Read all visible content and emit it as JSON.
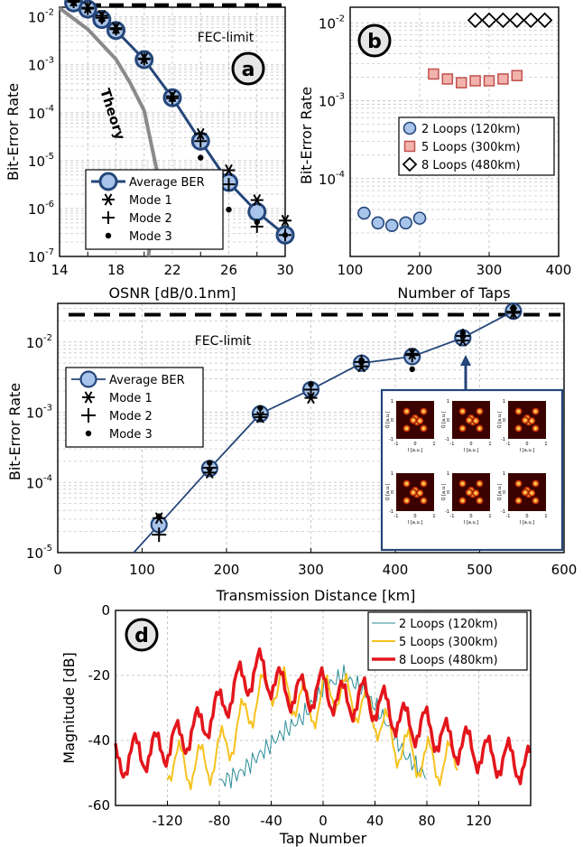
{
  "chart_data": [
    {
      "id": "a",
      "type": "line",
      "panel_label": "a",
      "xlabel": "OSNR [dB/0.1nm]",
      "ylabel": "Bit-Error Rate",
      "xlim": [
        14,
        30
      ],
      "ylim_log10": [
        -7,
        -1.8
      ],
      "yscale": "log",
      "grid": true,
      "x_ticks": [
        "14",
        "18",
        "22",
        "26",
        "30"
      ],
      "x_minor_ticks": [
        "16",
        "20",
        "24",
        "28"
      ],
      "y_ticks": [
        {
          "exp": -2,
          "label": "10",
          "sup": "-2"
        },
        {
          "exp": -3,
          "label": "10",
          "sup": "-3"
        },
        {
          "exp": -4,
          "label": "10",
          "sup": "-4"
        },
        {
          "exp": -5,
          "label": "10",
          "sup": "-5"
        },
        {
          "exp": -6,
          "label": "10",
          "sup": "-6"
        },
        {
          "exp": -7,
          "label": "10",
          "sup": "-7"
        }
      ],
      "fec_label": "FEC-limit",
      "fec_value": 0.0176,
      "theory_label": "Theory",
      "theory": {
        "x": [
          14,
          16,
          18,
          19,
          20,
          21
        ],
        "y": [
          0.0152,
          0.0055,
          0.0013,
          0.00042,
          0.00011,
          4.5e-06
        ]
      },
      "series": [
        {
          "name": "Average BER",
          "x": [
            15,
            16,
            17,
            18,
            20,
            22,
            24,
            26,
            28,
            30
          ],
          "y": [
            0.0195,
            0.0145,
            0.0088,
            0.0052,
            0.00128,
            0.000205,
            2.55e-05,
            3.5e-06,
            8.5e-07,
            2.8e-07
          ]
        },
        {
          "name": "Mode 1",
          "x": [
            15,
            16,
            17,
            18,
            20,
            22,
            24,
            26,
            28,
            30
          ],
          "y": [
            0.0215,
            0.0155,
            0.0105,
            0.0058,
            0.00135,
            0.00022,
            3.6e-05,
            6.3e-06,
            1.5e-06,
            5.6e-07
          ]
        },
        {
          "name": "Mode 2",
          "x": [
            15,
            16,
            17,
            18,
            20,
            22,
            24,
            26,
            28,
            30
          ],
          "y": [
            0.0205,
            0.0148,
            0.0095,
            0.0055,
            0.0013,
            0.0002,
            2.55e-05,
            3.2e-06,
            4.2e-07,
            2.8e-07
          ]
        },
        {
          "name": "Mode 3",
          "x": [
            15,
            16,
            17,
            18,
            20,
            22,
            24,
            26,
            28,
            30
          ],
          "y": [
            0.019,
            0.0142,
            0.0085,
            0.005,
            0.00125,
            0.00019,
            1.15e-05,
            9.5e-07,
            5.2e-07,
            2.8e-07
          ]
        }
      ],
      "legend": [
        "Average BER",
        "Mode 1",
        "Mode 2",
        "Mode 3"
      ]
    },
    {
      "id": "b",
      "type": "scatter",
      "panel_label": "b",
      "xlabel": "Number of Taps",
      "ylabel": "Bit-Error Rate",
      "xlim": [
        100,
        400
      ],
      "ylim_log10": [
        -5,
        -1.8
      ],
      "yscale": "log",
      "grid": true,
      "x_ticks": [
        "100",
        "200",
        "300",
        "400"
      ],
      "y_ticks": [
        {
          "exp": -2,
          "label": "10",
          "sup": "-2"
        },
        {
          "exp": -3,
          "label": "10",
          "sup": "-3"
        },
        {
          "exp": -4,
          "label": "10",
          "sup": "-4"
        }
      ],
      "series": [
        {
          "name": "2 Loops (120km)",
          "color": "#a9c4ea",
          "edge": "#24467a",
          "x": [
            120,
            140,
            160,
            180,
            200
          ],
          "y": [
            3.6e-05,
            2.7e-05,
            2.5e-05,
            2.7e-05,
            3.1e-05
          ]
        },
        {
          "name": "5 Loops (300km)",
          "color": "#f2b3ad",
          "edge": "#c0504d",
          "x": [
            220,
            240,
            260,
            280,
            300,
            320,
            340
          ],
          "y": [
            0.0022,
            0.0019,
            0.0017,
            0.0018,
            0.0018,
            0.0019,
            0.0021
          ]
        },
        {
          "name": "8 Loops (480km)",
          "color": "#ffffff",
          "edge": "#000000",
          "x": [
            280,
            300,
            320,
            340,
            360,
            380
          ],
          "y": [
            0.0108,
            0.0108,
            0.0108,
            0.0108,
            0.0108,
            0.0108
          ]
        }
      ],
      "legend": [
        "2 Loops (120km)",
        "5 Loops (300km)",
        "8 Loops (480km)"
      ]
    },
    {
      "id": "c",
      "type": "line",
      "xlabel": "Transmission Distance [km]",
      "ylabel": "Bit-Error Rate",
      "xlim": [
        0,
        600
      ],
      "ylim_log10": [
        -5,
        -1.45
      ],
      "yscale": "log",
      "grid": true,
      "x_ticks": [
        "0",
        "100",
        "200",
        "300",
        "400",
        "500",
        "600"
      ],
      "y_ticks": [
        {
          "exp": -2,
          "label": "10",
          "sup": "-2"
        },
        {
          "exp": -3,
          "label": "10",
          "sup": "-3"
        },
        {
          "exp": -4,
          "label": "10",
          "sup": "-4"
        },
        {
          "exp": -5,
          "label": "10",
          "sup": "-5"
        }
      ],
      "fec_label": "FEC-limit",
      "fec_value": 0.0245,
      "line_x": [
        90,
        120,
        180,
        240,
        300,
        360,
        420,
        480,
        540
      ],
      "line_y": [
        1e-05,
        2.5e-05,
        0.000158,
        0.00095,
        0.0021,
        0.005,
        0.0062,
        0.0115,
        0.0275
      ],
      "series": [
        {
          "name": "Average BER",
          "x": [
            120,
            180,
            240,
            300,
            360,
            420,
            480,
            540
          ],
          "y": [
            2.5e-05,
            0.000158,
            0.00095,
            0.0021,
            0.005,
            0.0062,
            0.0115,
            0.0275
          ]
        },
        {
          "name": "Mode 1",
          "x": [
            120,
            180,
            240,
            300,
            360,
            420,
            480,
            540
          ],
          "y": [
            3.1e-05,
            0.000138,
            0.00085,
            0.0016,
            0.0045,
            0.0068,
            0.0105,
            0.026
          ]
        },
        {
          "name": "Mode 2",
          "x": [
            120,
            180,
            240,
            300,
            360,
            420,
            480,
            540
          ],
          "y": [
            1.8e-05,
            0.000162,
            0.00093,
            0.0021,
            0.0052,
            0.0065,
            0.0122,
            0.027
          ]
        },
        {
          "name": "Mode 3",
          "x": [
            120,
            180,
            240,
            300,
            360,
            420,
            480,
            540
          ],
          "y": [
            3.3e-05,
            0.00019,
            0.00115,
            0.0025,
            0.0055,
            0.0041,
            0.0135,
            0.031
          ]
        }
      ],
      "legend": [
        "Average BER",
        "Mode 1",
        "Mode 2",
        "Mode 3"
      ],
      "inset": {
        "rows": 2,
        "cols": 3,
        "x_ticks": [
          "-1",
          "0",
          "1"
        ],
        "y_ticks": [
          "1",
          "0",
          "-1"
        ],
        "x_axis": "I [a.u.]",
        "y_axis": "Q [a.u.]"
      }
    },
    {
      "id": "d",
      "type": "line",
      "panel_label": "d",
      "xlabel": "Tap Number",
      "ylabel": "Magnitude [dB]",
      "xlim": [
        -160,
        160
      ],
      "ylim": [
        -60,
        0
      ],
      "grid": true,
      "x_ticks": [
        "-120",
        "-80",
        "-40",
        "0",
        "40",
        "80",
        "120"
      ],
      "y_ticks": [
        "0",
        "-20",
        "-40",
        "-60"
      ],
      "series": [
        {
          "name": "2 Loops (120km)",
          "color": "#2a8c96",
          "width": 1,
          "x": [
            -80,
            -64,
            -48,
            -32,
            -16,
            0,
            16,
            32,
            48,
            64,
            80
          ],
          "y": [
            -53,
            -50,
            -44,
            -38,
            -33,
            -24,
            -20,
            -25,
            -34,
            -45,
            -51
          ]
        },
        {
          "name": "5 Loops (300km)",
          "color": "#f6c21c",
          "width": 2,
          "x": [
            -120,
            -104,
            -88,
            -72,
            -56,
            -40,
            -24,
            -8,
            8,
            24,
            40,
            56,
            72,
            88,
            104
          ],
          "y": [
            -46,
            -48,
            -47,
            -40,
            -30,
            -22,
            -26,
            -30,
            -24,
            -28,
            -32,
            -41,
            -45,
            -47,
            -46
          ]
        },
        {
          "name": "8 Loops (480km)",
          "color": "#e3161c",
          "width": 3.5,
          "x": [
            -160,
            -144,
            -128,
            -112,
            -96,
            -80,
            -64,
            -48,
            -32,
            -16,
            0,
            16,
            32,
            48,
            64,
            80,
            96,
            112,
            128,
            144,
            160
          ],
          "y": [
            -47,
            -44,
            -43,
            -40,
            -36,
            -30,
            -22,
            -18,
            -24,
            -26,
            -24,
            -28,
            -27,
            -30,
            -35,
            -36,
            -40,
            -42,
            -45,
            -46,
            -48
          ]
        }
      ],
      "legend": [
        "2 Loops (120km)",
        "5 Loops (300km)",
        "8 Loops (480km)"
      ]
    }
  ]
}
